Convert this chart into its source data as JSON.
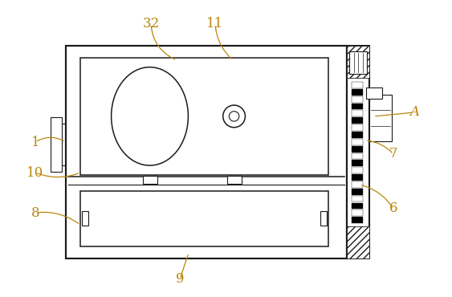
{
  "bg_color": "#ffffff",
  "line_color": "#1a1a1a",
  "label_color": "#b8860b",
  "fig_width": 5.63,
  "fig_height": 3.7,
  "dpi": 100
}
